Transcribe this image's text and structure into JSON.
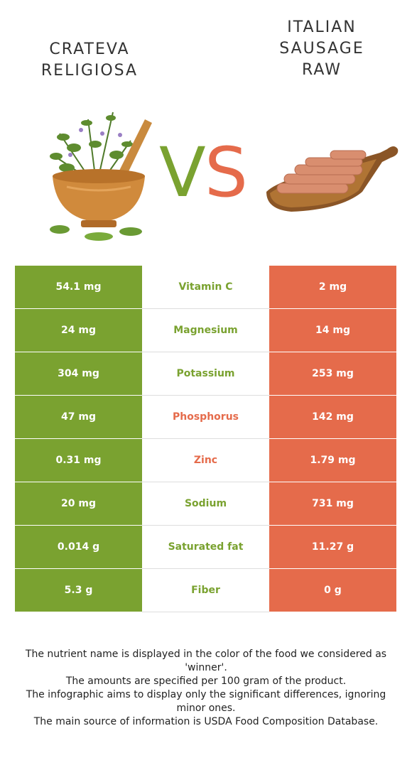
{
  "left_food": {
    "name_line1": "CRATEVA",
    "name_line2": "RELIGIOSA",
    "image_icon": "mortar-with-herbs-icon",
    "color": "#7aa230"
  },
  "right_food": {
    "name_line1": "ITALIAN",
    "name_line2": "SAUSAGE",
    "name_line3": "RAW",
    "image_icon": "sausages-on-board-icon",
    "color": "#e56b4b"
  },
  "vs": {
    "v": "V",
    "s": "S"
  },
  "rows": [
    {
      "left": "54.1 mg",
      "nutrient": "Vitamin C",
      "right": "2 mg",
      "winner": "left"
    },
    {
      "left": "24 mg",
      "nutrient": "Magnesium",
      "right": "14 mg",
      "winner": "left"
    },
    {
      "left": "304 mg",
      "nutrient": "Potassium",
      "right": "253 mg",
      "winner": "left"
    },
    {
      "left": "47 mg",
      "nutrient": "Phosphorus",
      "right": "142 mg",
      "winner": "right"
    },
    {
      "left": "0.31 mg",
      "nutrient": "Zinc",
      "right": "1.79 mg",
      "winner": "right"
    },
    {
      "left": "20 mg",
      "nutrient": "Sodium",
      "right": "731 mg",
      "winner": "left"
    },
    {
      "left": "0.014 g",
      "nutrient": "Saturated fat",
      "right": "11.27 g",
      "winner": "left"
    },
    {
      "left": "5.3 g",
      "nutrient": "Fiber",
      "right": "0 g",
      "winner": "left"
    }
  ],
  "footer": [
    "The nutrient name is displayed in the color of the food we considered as 'winner'.",
    "The amounts are specified per 100 gram of the product.",
    "The infographic aims to display only the significant differences, ignoring minor ones.",
    "The main source of information is USDA Food Composition Database."
  ]
}
